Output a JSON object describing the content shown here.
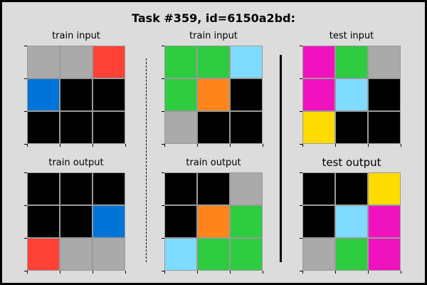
{
  "title": "Task #359, id=6150a2bd:",
  "panels": [
    {
      "label": "train input",
      "grid": [
        [
          "gray",
          "gray",
          "red"
        ],
        [
          "blue",
          "black",
          "black"
        ],
        [
          "black",
          "black",
          "black"
        ]
      ]
    },
    {
      "label": "train input",
      "grid": [
        [
          "green",
          "green",
          "cyan"
        ],
        [
          "green",
          "orange",
          "black"
        ],
        [
          "gray",
          "black",
          "black"
        ]
      ]
    },
    {
      "label": "test input",
      "grid": [
        [
          "magenta",
          "green",
          "gray"
        ],
        [
          "magenta",
          "cyan",
          "black"
        ],
        [
          "yellow",
          "black",
          "black"
        ]
      ]
    },
    {
      "label": "train output",
      "grid": [
        [
          "black",
          "black",
          "black"
        ],
        [
          "black",
          "black",
          "blue"
        ],
        [
          "red",
          "gray",
          "gray"
        ]
      ]
    },
    {
      "label": "train output",
      "grid": [
        [
          "black",
          "black",
          "gray"
        ],
        [
          "black",
          "orange",
          "green"
        ],
        [
          "cyan",
          "green",
          "green"
        ]
      ]
    },
    {
      "label": "test output",
      "grid": [
        [
          "black",
          "black",
          "yellow"
        ],
        [
          "black",
          "cyan",
          "magenta"
        ],
        [
          "gray",
          "green",
          "magenta"
        ]
      ]
    }
  ],
  "colors": {
    "black": "#000000",
    "gray": "#aaaaaa",
    "red": "#ff4136",
    "blue": "#0074d9",
    "green": "#2ecc40",
    "cyan": "#7fdbff",
    "orange": "#ff851b",
    "magenta": "#f012be",
    "yellow": "#ffdc00"
  }
}
